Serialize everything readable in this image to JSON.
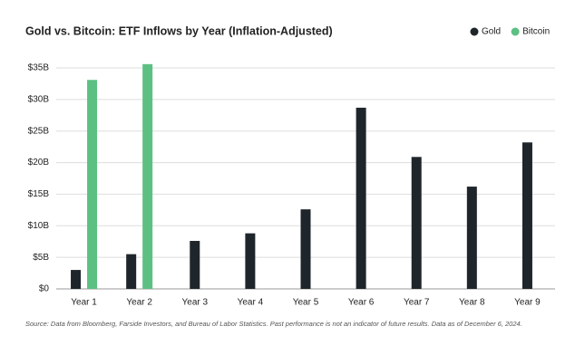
{
  "chart_data": {
    "type": "bar",
    "title": "Gold vs. Bitcoin: ETF Inflows by Year (Inflation-Adjusted)",
    "categories": [
      "Year 1",
      "Year 2",
      "Year 3",
      "Year 4",
      "Year 5",
      "Year 6",
      "Year 7",
      "Year 8",
      "Year 9"
    ],
    "series": [
      {
        "name": "Gold",
        "color": "#1f262b",
        "values": [
          3.0,
          5.5,
          7.6,
          8.8,
          12.6,
          28.7,
          20.9,
          16.2,
          23.2
        ]
      },
      {
        "name": "Bitcoin",
        "color": "#5cc083",
        "values": [
          33.1,
          35.6,
          null,
          null,
          null,
          null,
          null,
          null,
          null
        ]
      }
    ],
    "ylim": [
      0,
      35
    ],
    "yticks": [
      {
        "value": 0,
        "label": "$0"
      },
      {
        "value": 5,
        "label": "$5B"
      },
      {
        "value": 10,
        "label": "$10B"
      },
      {
        "value": 15,
        "label": "$15B"
      },
      {
        "value": 20,
        "label": "$20B"
      },
      {
        "value": 25,
        "label": "$25B"
      },
      {
        "value": 30,
        "label": "$30B"
      },
      {
        "value": 35,
        "label": "$35B"
      }
    ],
    "grid": true,
    "legend": "top-right",
    "source": "Source: Data from Bloomberg, Farside Investors, and Bureau of Labor Statistics. Past performance is not an indicator of future results. Data as of December 6, 2024."
  }
}
